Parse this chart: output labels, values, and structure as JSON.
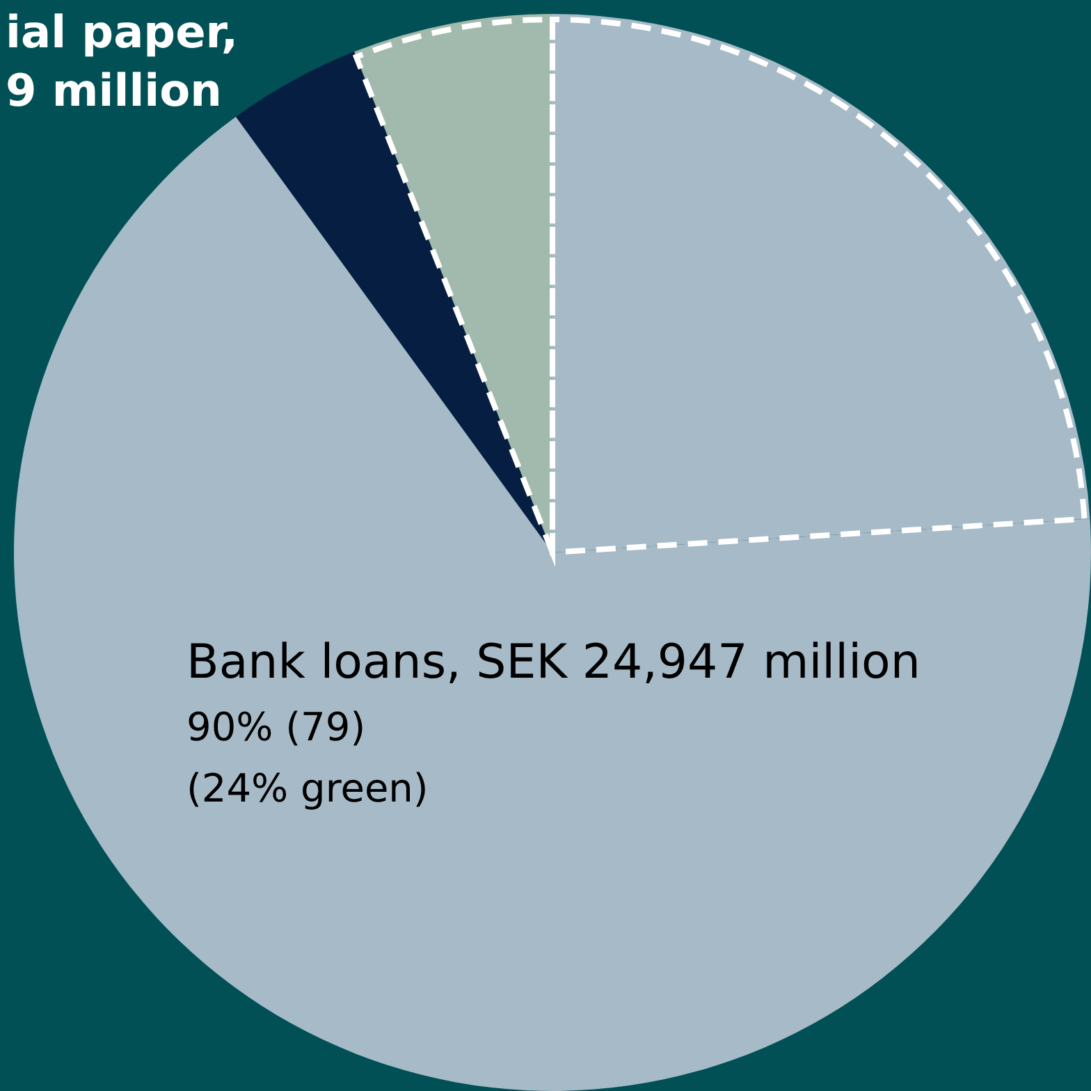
{
  "chart_data": {
    "type": "pie",
    "categories": [
      null,
      "Bank loans, SEK 24,947 million",
      "ial paper, 9 million",
      null
    ],
    "values": [
      24,
      66,
      4,
      6
    ],
    "colors": [
      "#a6bac7",
      "#a6bac7",
      "#051e42",
      "#a2b9ad"
    ],
    "line_style": "dashed",
    "legend": false,
    "annotations": [
      "90% (79)",
      "(24% green)"
    ]
  }
}
